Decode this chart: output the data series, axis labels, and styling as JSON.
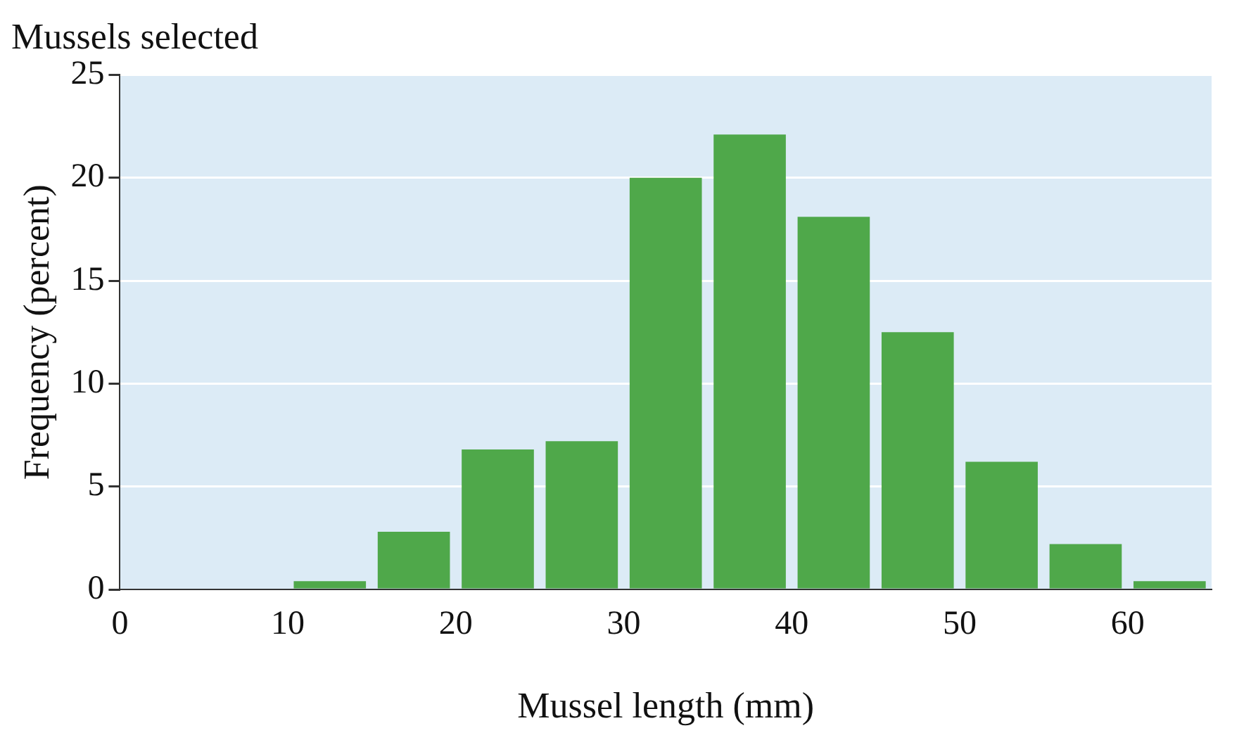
{
  "chart_data": {
    "type": "histogram",
    "title": "Mussels selected",
    "xlabel": "Mussel length (mm)",
    "ylabel": "Frequency (percent)",
    "bins": [
      10,
      15,
      20,
      25,
      30,
      35,
      40,
      45,
      50,
      55,
      60,
      65
    ],
    "values": [
      0.4,
      2.8,
      6.8,
      7.2,
      20,
      22.1,
      18.1,
      12.5,
      6.2,
      2.2,
      0.4
    ],
    "color": "#4fa84a",
    "xlim": [
      0,
      65
    ],
    "xticks": [
      0,
      10,
      20,
      30,
      40,
      50,
      60
    ],
    "ylim": [
      0,
      25
    ],
    "yticks": [
      0,
      5,
      10,
      15,
      20,
      25
    ],
    "grid": "y",
    "legend": false
  }
}
